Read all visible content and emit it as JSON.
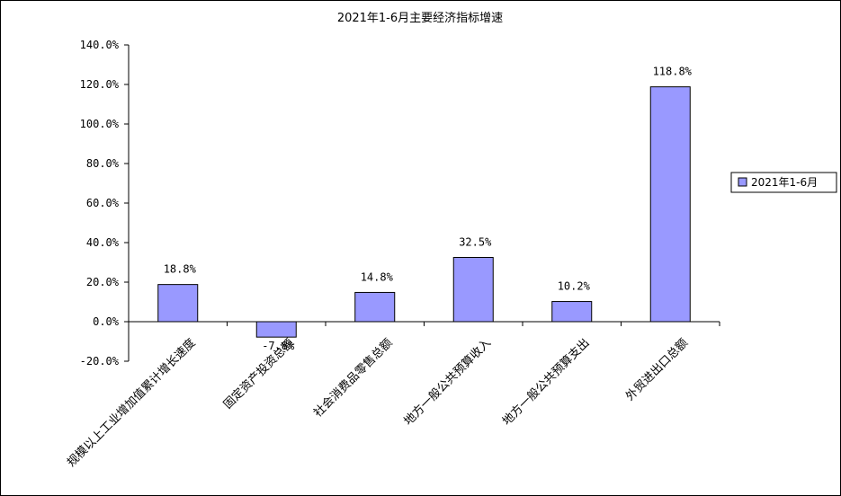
{
  "chart_data": {
    "type": "bar",
    "title": "2021年1-6月主要经济指标增速",
    "categories": [
      "规模以上工业增加值累计增长速度",
      "固定资产投资总额",
      "社会消费品零售总额",
      "地方一般公共预算收入",
      "地方一般公共预算支出",
      "外贸进出口总额"
    ],
    "series": [
      {
        "name": "2021年1-6月",
        "values": [
          18.8,
          -7.8,
          14.8,
          32.5,
          10.2,
          118.8
        ],
        "value_labels": [
          "18.8%",
          "-7.8%",
          "14.8%",
          "32.5%",
          "10.2%",
          "118.8%"
        ]
      }
    ],
    "yticks": [
      140,
      120,
      100,
      80,
      60,
      40,
      20,
      0,
      -20
    ],
    "ytick_labels": [
      "140.0%",
      "120.0%",
      "100.0%",
      "80.0%",
      "60.0%",
      "40.0%",
      "20.0%",
      "0.0%",
      "-20.0%"
    ],
    "ylim": [
      -20,
      140
    ],
    "xlabel": "",
    "ylabel": "",
    "legend_position": "right",
    "grid": false,
    "bar_color": "#9999ff"
  }
}
